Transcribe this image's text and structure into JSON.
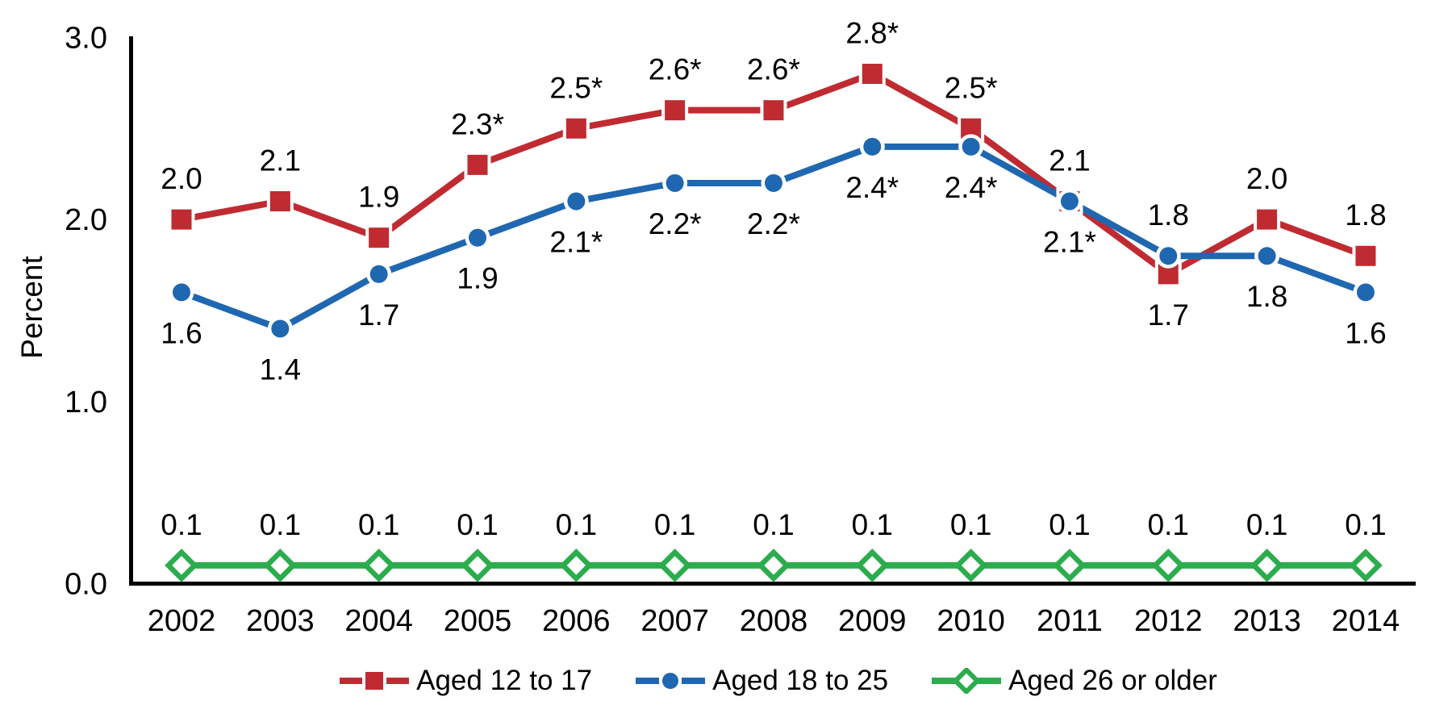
{
  "figure": {
    "background": "#ffffff",
    "text_color": "#000000"
  },
  "chart_data": {
    "type": "line",
    "title": "",
    "xlabel": "",
    "ylabel": "Percent",
    "ylim": [
      0,
      3.0
    ],
    "yticks": [
      0.0,
      1.0,
      2.0,
      3.0
    ],
    "ytick_labels": [
      "0.0",
      "1.0",
      "2.0",
      "3.0"
    ],
    "x": [
      "2002",
      "2003",
      "2004",
      "2005",
      "2006",
      "2007",
      "2008",
      "2009",
      "2010",
      "2011",
      "2012",
      "2013",
      "2014"
    ],
    "grid": false,
    "legend_position": "bottom",
    "series": [
      {
        "name": "Aged 12 to 17",
        "color": "#bf2b31",
        "marker": "square",
        "values": [
          2.0,
          2.1,
          1.9,
          2.3,
          2.5,
          2.6,
          2.6,
          2.8,
          2.5,
          2.1,
          1.7,
          2.0,
          1.8
        ],
        "point_labels": [
          "2.0",
          "2.1",
          "1.9",
          "2.3*",
          "2.5*",
          "2.6*",
          "2.6*",
          "2.8*",
          "2.5*",
          "2.1",
          "1.7",
          "2.0",
          "1.8"
        ],
        "label_side": [
          "above",
          "above",
          "above",
          "above",
          "above",
          "above",
          "above",
          "above",
          "above",
          "above",
          "below",
          "above",
          "above"
        ]
      },
      {
        "name": "Aged 18 to 25",
        "color": "#1f67b1",
        "marker": "circle",
        "values": [
          1.6,
          1.4,
          1.7,
          1.9,
          2.1,
          2.2,
          2.2,
          2.4,
          2.4,
          2.1,
          1.8,
          1.8,
          1.6
        ],
        "point_labels": [
          "1.6",
          "1.4",
          "1.7",
          "1.9",
          "2.1*",
          "2.2*",
          "2.2*",
          "2.4*",
          "2.4*",
          "2.1*",
          "1.8",
          "1.8",
          "1.6"
        ],
        "label_side": [
          "below",
          "below",
          "below",
          "below",
          "below",
          "below",
          "below",
          "below",
          "below",
          "below",
          "above",
          "below",
          "below"
        ]
      },
      {
        "name": "Aged 26 or older",
        "color": "#2bac4d",
        "marker": "diamond-open",
        "values": [
          0.1,
          0.1,
          0.1,
          0.1,
          0.1,
          0.1,
          0.1,
          0.1,
          0.1,
          0.1,
          0.1,
          0.1,
          0.1
        ],
        "point_labels": [
          "0.1",
          "0.1",
          "0.1",
          "0.1",
          "0.1",
          "0.1",
          "0.1",
          "0.1",
          "0.1",
          "0.1",
          "0.1",
          "0.1",
          "0.1"
        ],
        "label_side": [
          "above",
          "above",
          "above",
          "above",
          "above",
          "above",
          "above",
          "above",
          "above",
          "above",
          "above",
          "above",
          "above"
        ]
      }
    ]
  }
}
